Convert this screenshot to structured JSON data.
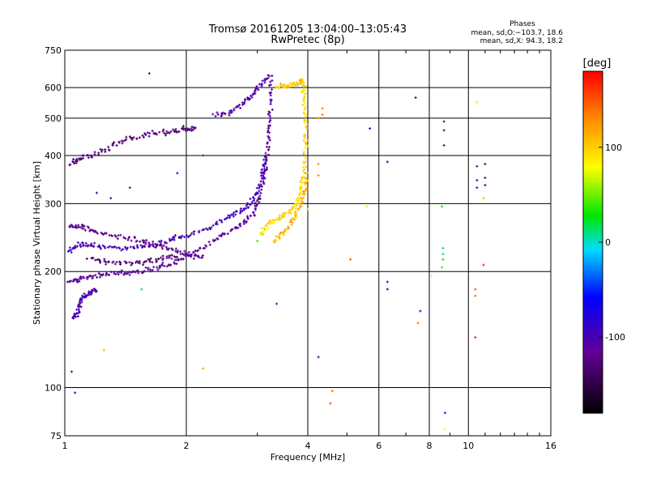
{
  "chart_data": {
    "type": "scatter",
    "title": "Tromsø 20161205 13:04:00–13:05:43",
    "subtitle": "RwPretec (8p)",
    "xlabel": "Frequency [MHz]",
    "ylabel": "Stationary phase Virtual Height [km]",
    "xscale": "log",
    "yscale": "log",
    "xlim": [
      1,
      16
    ],
    "ylim": [
      75,
      750
    ],
    "x_ticks": [
      1,
      2,
      4,
      6,
      8,
      10,
      16
    ],
    "y_ticks": [
      75,
      100,
      200,
      300,
      400,
      500,
      600,
      750
    ],
    "grid": true,
    "stats": {
      "heading": "Phases",
      "line_o": "mean, sd,O:−103.7, 18.6",
      "line_x": "mean, sd,X: 94.3, 18.2"
    },
    "colorbar": {
      "label": "[deg]",
      "range": [
        -180,
        180
      ],
      "ticks": [
        -100,
        0,
        100
      ],
      "colormap": "rainbow"
    },
    "series": [
      {
        "mode": "O",
        "traces": [
          {
            "points": [
              [
                1.02,
                188
              ],
              [
                1.1,
                192
              ],
              [
                1.2,
                196
              ],
              [
                1.35,
                198
              ],
              [
                1.5,
                200
              ],
              [
                1.7,
                205
              ],
              [
                1.9,
                212
              ],
              [
                2.1,
                225
              ],
              [
                2.4,
                245
              ],
              [
                2.7,
                262
              ],
              [
                2.9,
                280
              ],
              [
                3.05,
                310
              ],
              [
                3.15,
                380
              ],
              [
                3.2,
                450
              ],
              [
                3.22,
                520
              ],
              [
                3.25,
                640
              ]
            ],
            "phase": -112
          },
          {
            "points": [
              [
                1.02,
                225
              ],
              [
                1.1,
                235
              ],
              [
                1.2,
                232
              ],
              [
                1.4,
                230
              ],
              [
                1.6,
                232
              ],
              [
                1.8,
                240
              ],
              [
                2.0,
                248
              ],
              [
                2.3,
                260
              ],
              [
                2.6,
                280
              ],
              [
                2.85,
                295
              ],
              [
                3.0,
                320
              ],
              [
                3.1,
                360
              ],
              [
                3.15,
                400
              ]
            ],
            "phase": -98
          },
          {
            "points": [
              [
                1.02,
                260
              ],
              [
                1.1,
                262
              ],
              [
                1.2,
                252
              ],
              [
                1.4,
                245
              ],
              [
                1.6,
                238
              ],
              [
                1.8,
                230
              ],
              [
                2.0,
                222
              ],
              [
                2.2,
                218
              ]
            ],
            "phase": -120
          },
          {
            "points": [
              [
                1.15,
                215
              ],
              [
                1.3,
                212
              ],
              [
                1.5,
                210
              ],
              [
                1.7,
                215
              ],
              [
                1.9,
                220
              ]
            ],
            "phase": -128
          },
          {
            "points": [
              [
                1.05,
                150
              ],
              [
                1.08,
                160
              ],
              [
                1.1,
                170
              ],
              [
                1.15,
                175
              ],
              [
                1.2,
                180
              ]
            ],
            "phase": -100
          },
          {
            "points": [
              [
                1.03,
                380
              ],
              [
                1.1,
                395
              ],
              [
                1.25,
                410
              ],
              [
                1.4,
                440
              ],
              [
                1.6,
                455
              ],
              [
                1.8,
                460
              ],
              [
                2.0,
                468
              ],
              [
                2.1,
                470
              ]
            ],
            "phase": -125
          },
          {
            "points": [
              [
                2.35,
                510
              ],
              [
                2.6,
                520
              ],
              [
                2.85,
                560
              ],
              [
                3.0,
                600
              ],
              [
                3.2,
                640
              ]
            ],
            "phase": -108
          }
        ],
        "scatter": [
          [
            1.62,
            653,
            -130
          ],
          [
            1.04,
            110,
            -115
          ],
          [
            1.06,
            97,
            -105
          ],
          [
            3.35,
            165,
            -105
          ],
          [
            4.25,
            120,
            -95
          ],
          [
            5.7,
            470,
            -80
          ],
          [
            6.3,
            385,
            -85
          ],
          [
            6.3,
            188,
            -90
          ],
          [
            6.3,
            180,
            -95
          ],
          [
            7.6,
            158,
            -100
          ],
          [
            7.4,
            565,
            -85
          ],
          [
            8.7,
            490,
            -130
          ],
          [
            8.7,
            465,
            -125
          ],
          [
            8.7,
            425,
            -115
          ],
          [
            10.5,
            375,
            -120
          ],
          [
            10.5,
            345,
            -110
          ],
          [
            10.5,
            330,
            -100
          ],
          [
            11,
            380,
            -125
          ],
          [
            11,
            350,
            -115
          ],
          [
            11,
            335,
            -125
          ],
          [
            2.2,
            400,
            -105
          ],
          [
            1.9,
            360,
            -98
          ],
          [
            1.45,
            330,
            -110
          ],
          [
            1.3,
            310,
            -95
          ],
          [
            1.2,
            320,
            -105
          ]
        ]
      },
      {
        "mode": "X",
        "traces": [
          {
            "points": [
              [
                3.05,
                250
              ],
              [
                3.2,
                265
              ],
              [
                3.4,
                275
              ],
              [
                3.65,
                290
              ],
              [
                3.8,
                310
              ],
              [
                3.9,
                350
              ],
              [
                3.95,
                420
              ],
              [
                3.95,
                500
              ],
              [
                3.92,
                580
              ],
              [
                3.9,
                620
              ]
            ],
            "phase": 96
          },
          {
            "points": [
              [
                3.3,
                240
              ],
              [
                3.5,
                255
              ],
              [
                3.7,
                275
              ],
              [
                3.85,
                300
              ],
              [
                3.92,
                320
              ],
              [
                3.95,
                360
              ]
            ],
            "phase": 110
          },
          {
            "points": [
              [
                3.35,
                600
              ],
              [
                3.55,
                610
              ],
              [
                3.75,
                615
              ],
              [
                3.9,
                625
              ]
            ],
            "phase": 102
          }
        ],
        "scatter": [
          [
            4.35,
            530,
            135
          ],
          [
            4.35,
            510,
            140
          ],
          [
            4.25,
            500,
            130
          ],
          [
            4.25,
            380,
            125
          ],
          [
            4.25,
            355,
            130
          ],
          [
            4.0,
            290,
            110
          ],
          [
            4.6,
            98,
            140
          ],
          [
            4.55,
            91,
            150
          ],
          [
            5.1,
            215,
            150
          ],
          [
            5.6,
            295,
            90
          ],
          [
            7.5,
            147,
            140
          ],
          [
            8.6,
            295,
            30
          ],
          [
            8.65,
            230,
            15
          ],
          [
            8.65,
            222,
            10
          ],
          [
            8.65,
            215,
            25
          ],
          [
            8.6,
            205,
            40
          ],
          [
            8.1,
            195,
            80
          ],
          [
            8.75,
            86,
            -50
          ],
          [
            8.75,
            78,
            80
          ],
          [
            10.5,
            550,
            95
          ],
          [
            10.4,
            180,
            150
          ],
          [
            10.4,
            173,
            140
          ],
          [
            10.4,
            135,
            170
          ],
          [
            10.9,
            208,
            170
          ],
          [
            10.9,
            310,
            110
          ],
          [
            2.2,
            112,
            120
          ],
          [
            1.25,
            125,
            110
          ],
          [
            1.55,
            180,
            20
          ],
          [
            3.0,
            240,
            40
          ],
          [
            3.1,
            250,
            60
          ]
        ]
      }
    ]
  }
}
